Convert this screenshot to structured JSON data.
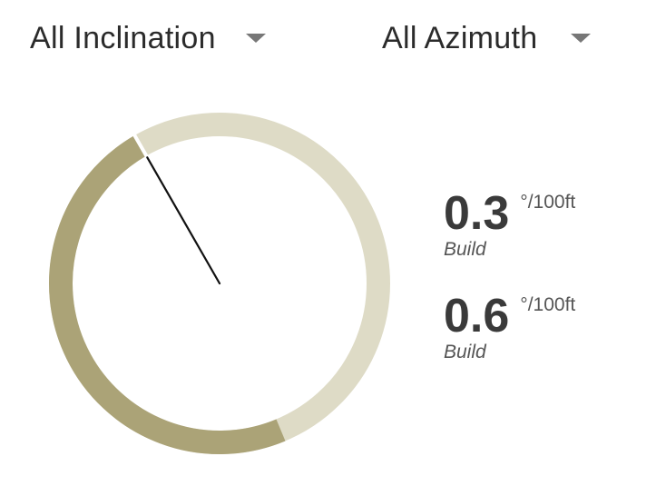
{
  "filters": {
    "inclination": {
      "selected": "All Inclination",
      "icon": "chevron-down-icon"
    },
    "azimuth": {
      "selected": "All Azimuth",
      "icon": "chevron-down-icon"
    }
  },
  "gauge": {
    "progress_fraction": 0.48,
    "needle_fraction": 0.917,
    "colors": {
      "filled": "#aba377",
      "track": "#dedbc6",
      "needle": "#111111"
    }
  },
  "metrics": [
    {
      "value": "0.3",
      "unit": "°/100ft",
      "label": "Build"
    },
    {
      "value": "0.6",
      "unit": "°/100ft",
      "label": "Build"
    }
  ]
}
